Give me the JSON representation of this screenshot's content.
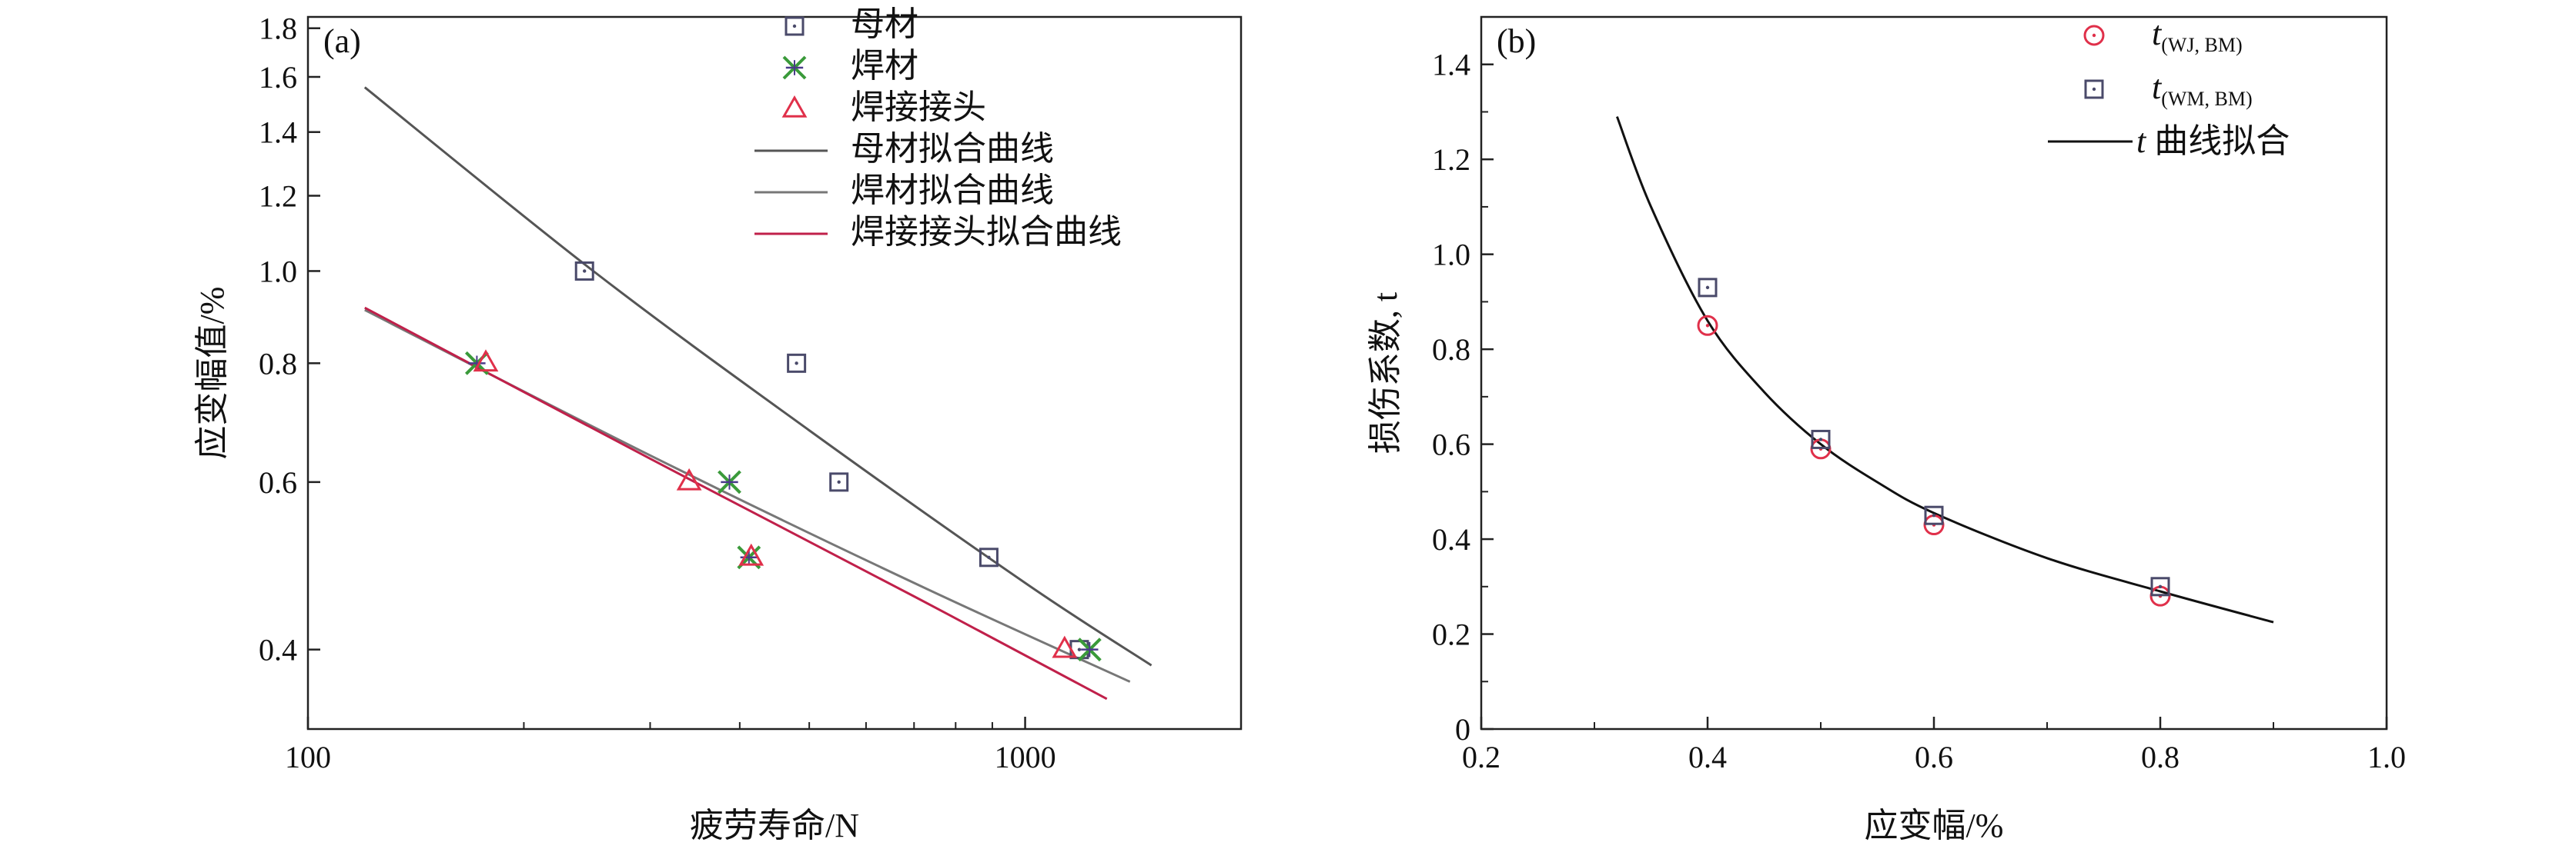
{
  "chart_data": [
    {
      "id": "a",
      "type": "scatter",
      "panel_label": "(a)",
      "xlabel": "疲劳寿命/N",
      "ylabel": "应变幅值/%",
      "x_scale": "log",
      "y_scale": "log",
      "xlim": [
        100,
        2000
      ],
      "ylim": [
        0.33,
        1.85
      ],
      "x_ticks": [
        100,
        1000
      ],
      "x_tick_labels": [
        "100",
        "1000"
      ],
      "x_minor_ticks": [
        200,
        300,
        400,
        500,
        600,
        700,
        800,
        900,
        2000
      ],
      "y_ticks": [
        0.4,
        0.6,
        0.8,
        1.0,
        1.2,
        1.4,
        1.6,
        1.8
      ],
      "y_tick_labels": [
        "0.4",
        "0.6",
        "0.8",
        "1.0",
        "1.2",
        "1.4",
        "1.6",
        "1.8"
      ],
      "grid": false,
      "legend_position": "top-right",
      "colors": {
        "bm": "#4a4a6a",
        "wm": "#3a9a3a",
        "wm_cross": "#4a3a8a",
        "wj": "#e0304a",
        "fit_bm": "#555555",
        "fit_wm": "#777777",
        "fit_wj": "#c0204a"
      },
      "series": [
        {
          "name": "母材",
          "kind": "points",
          "marker": "square-dot",
          "color_key": "bm",
          "points": [
            [
              243,
              1.0
            ],
            [
              480,
              0.8
            ],
            [
              550,
              0.6
            ],
            [
              890,
              0.5
            ],
            [
              1190,
              0.4
            ]
          ]
        },
        {
          "name": "焊材",
          "kind": "points",
          "marker": "star-x",
          "color_key": "wm",
          "points": [
            [
              172,
              0.8
            ],
            [
              387,
              0.6
            ],
            [
              412,
              0.5
            ],
            [
              1230,
              0.4
            ]
          ]
        },
        {
          "name": "焊接接头",
          "kind": "points",
          "marker": "triangle",
          "color_key": "wj",
          "points": [
            [
              177,
              0.8
            ],
            [
              340,
              0.6
            ],
            [
              415,
              0.5
            ],
            [
              1135,
              0.4
            ]
          ]
        },
        {
          "name": "母材拟合曲线",
          "kind": "line",
          "color_key": "fit_bm",
          "points": [
            [
              120,
              1.56
            ],
            [
              250,
              1.0
            ],
            [
              500,
              0.68
            ],
            [
              1000,
              0.47
            ],
            [
              1500,
              0.385
            ]
          ]
        },
        {
          "name": "焊材拟合曲线",
          "kind": "line",
          "color_key": "fit_wm",
          "points": [
            [
              120,
              0.91
            ],
            [
              300,
              0.64
            ],
            [
              700,
              0.47
            ],
            [
              1400,
              0.37
            ]
          ]
        },
        {
          "name": "焊接接头拟合曲线",
          "kind": "line",
          "color_key": "fit_wj",
          "points": [
            [
              120,
              0.915
            ],
            [
              300,
              0.635
            ],
            [
              700,
              0.455
            ],
            [
              1300,
              0.355
            ]
          ]
        }
      ]
    },
    {
      "id": "b",
      "type": "scatter",
      "panel_label": "(b)",
      "xlabel": "应变幅/%",
      "ylabel": "损伤系数, t",
      "xlim": [
        0.2,
        1.0
      ],
      "ylim": [
        0,
        1.5
      ],
      "x_ticks": [
        0.2,
        0.4,
        0.6,
        0.8,
        1.0
      ],
      "x_tick_labels": [
        "0.2",
        "0.4",
        "0.6",
        "0.8",
        "1.0"
      ],
      "y_ticks": [
        0,
        0.2,
        0.4,
        0.6,
        0.8,
        1.0,
        1.2,
        1.4
      ],
      "y_tick_labels": [
        "0",
        "0.2",
        "0.4",
        "0.6",
        "0.8",
        "1.0",
        "1.2",
        "1.4"
      ],
      "grid": false,
      "legend_position": "top-right",
      "colors": {
        "wj": "#e0304a",
        "wm": "#4a4a6a",
        "fit": "#111111"
      },
      "series": [
        {
          "name": "t(WJ, BM)",
          "legend_main": "t",
          "legend_sub": "(WJ, BM)",
          "kind": "points",
          "marker": "circle-dot",
          "color_key": "wj",
          "points": [
            [
              0.4,
              0.85
            ],
            [
              0.5,
              0.59
            ],
            [
              0.6,
              0.43
            ],
            [
              0.8,
              0.28
            ]
          ]
        },
        {
          "name": "t(WM, BM)",
          "legend_main": "t",
          "legend_sub": "(WM, BM)",
          "kind": "points",
          "marker": "square-dot",
          "color_key": "wm",
          "points": [
            [
              0.4,
              0.93
            ],
            [
              0.5,
              0.61
            ],
            [
              0.6,
              0.45
            ],
            [
              0.8,
              0.3
            ]
          ]
        },
        {
          "name": "t 曲线拟合",
          "legend_main": "t",
          "legend_rest": " 曲线拟合",
          "kind": "line",
          "color_key": "fit",
          "points": [
            [
              0.32,
              1.29
            ],
            [
              0.35,
              1.1
            ],
            [
              0.4,
              0.86
            ],
            [
              0.45,
              0.71
            ],
            [
              0.5,
              0.6
            ],
            [
              0.55,
              0.52
            ],
            [
              0.6,
              0.455
            ],
            [
              0.7,
              0.36
            ],
            [
              0.8,
              0.29
            ],
            [
              0.9,
              0.225
            ]
          ]
        }
      ]
    }
  ]
}
